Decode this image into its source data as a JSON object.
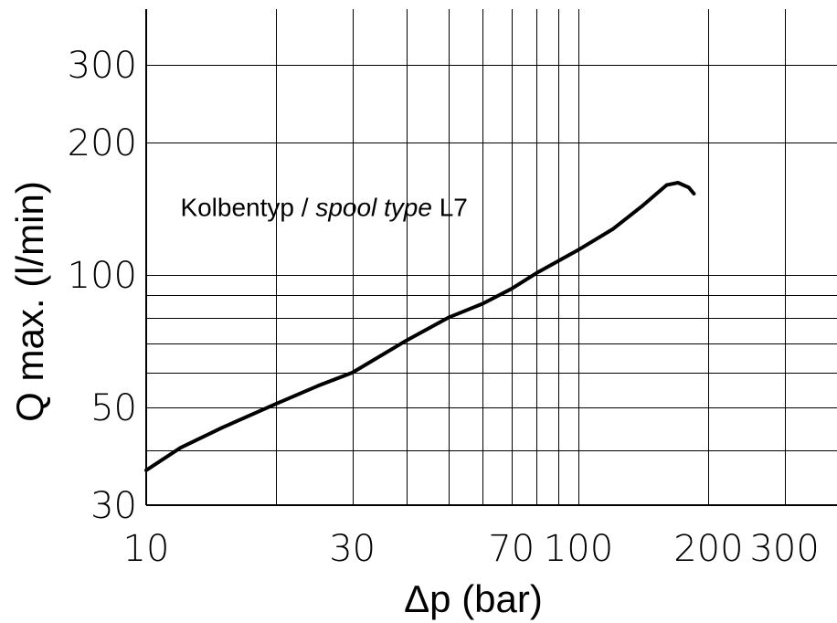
{
  "chart_data": {
    "type": "line",
    "xscale": "log",
    "yscale": "log",
    "xlim": [
      10,
      350
    ],
    "ylim": [
      30,
      380
    ],
    "xlabel": "Δp (bar)",
    "ylabel": "Q max. (l/min)",
    "grid": true,
    "x_grid": [
      20,
      30,
      40,
      50,
      60,
      70,
      80,
      90,
      100,
      200,
      300
    ],
    "y_grid": [
      40,
      50,
      60,
      70,
      80,
      90,
      100,
      200,
      300
    ],
    "x_ticks": [
      {
        "value": 10,
        "label": "10"
      },
      {
        "value": 30,
        "label": "30"
      },
      {
        "value": 70,
        "label": "70"
      },
      {
        "value": 100,
        "label": "100"
      },
      {
        "value": 200,
        "label": "200"
      },
      {
        "value": 300,
        "label": "300"
      }
    ],
    "y_ticks": [
      {
        "value": 30,
        "label": "30"
      },
      {
        "value": 50,
        "label": "50"
      },
      {
        "value": 100,
        "label": "100"
      },
      {
        "value": 200,
        "label": "200"
      },
      {
        "value": 300,
        "label": "300"
      }
    ],
    "annotation": {
      "part1": "Kolbentyp / ",
      "part2": "spool type",
      "part3": " L7",
      "x": 12,
      "y": 136
    },
    "series": [
      {
        "x": [
          10,
          12,
          15,
          20,
          25,
          30,
          40,
          50,
          60,
          70,
          80,
          100,
          120,
          140,
          160,
          170,
          180,
          185
        ],
        "y": [
          36,
          40.5,
          45,
          51,
          56,
          60,
          71,
          80,
          86,
          93,
          101,
          114,
          127,
          143,
          160,
          162,
          158,
          153
        ]
      }
    ]
  }
}
